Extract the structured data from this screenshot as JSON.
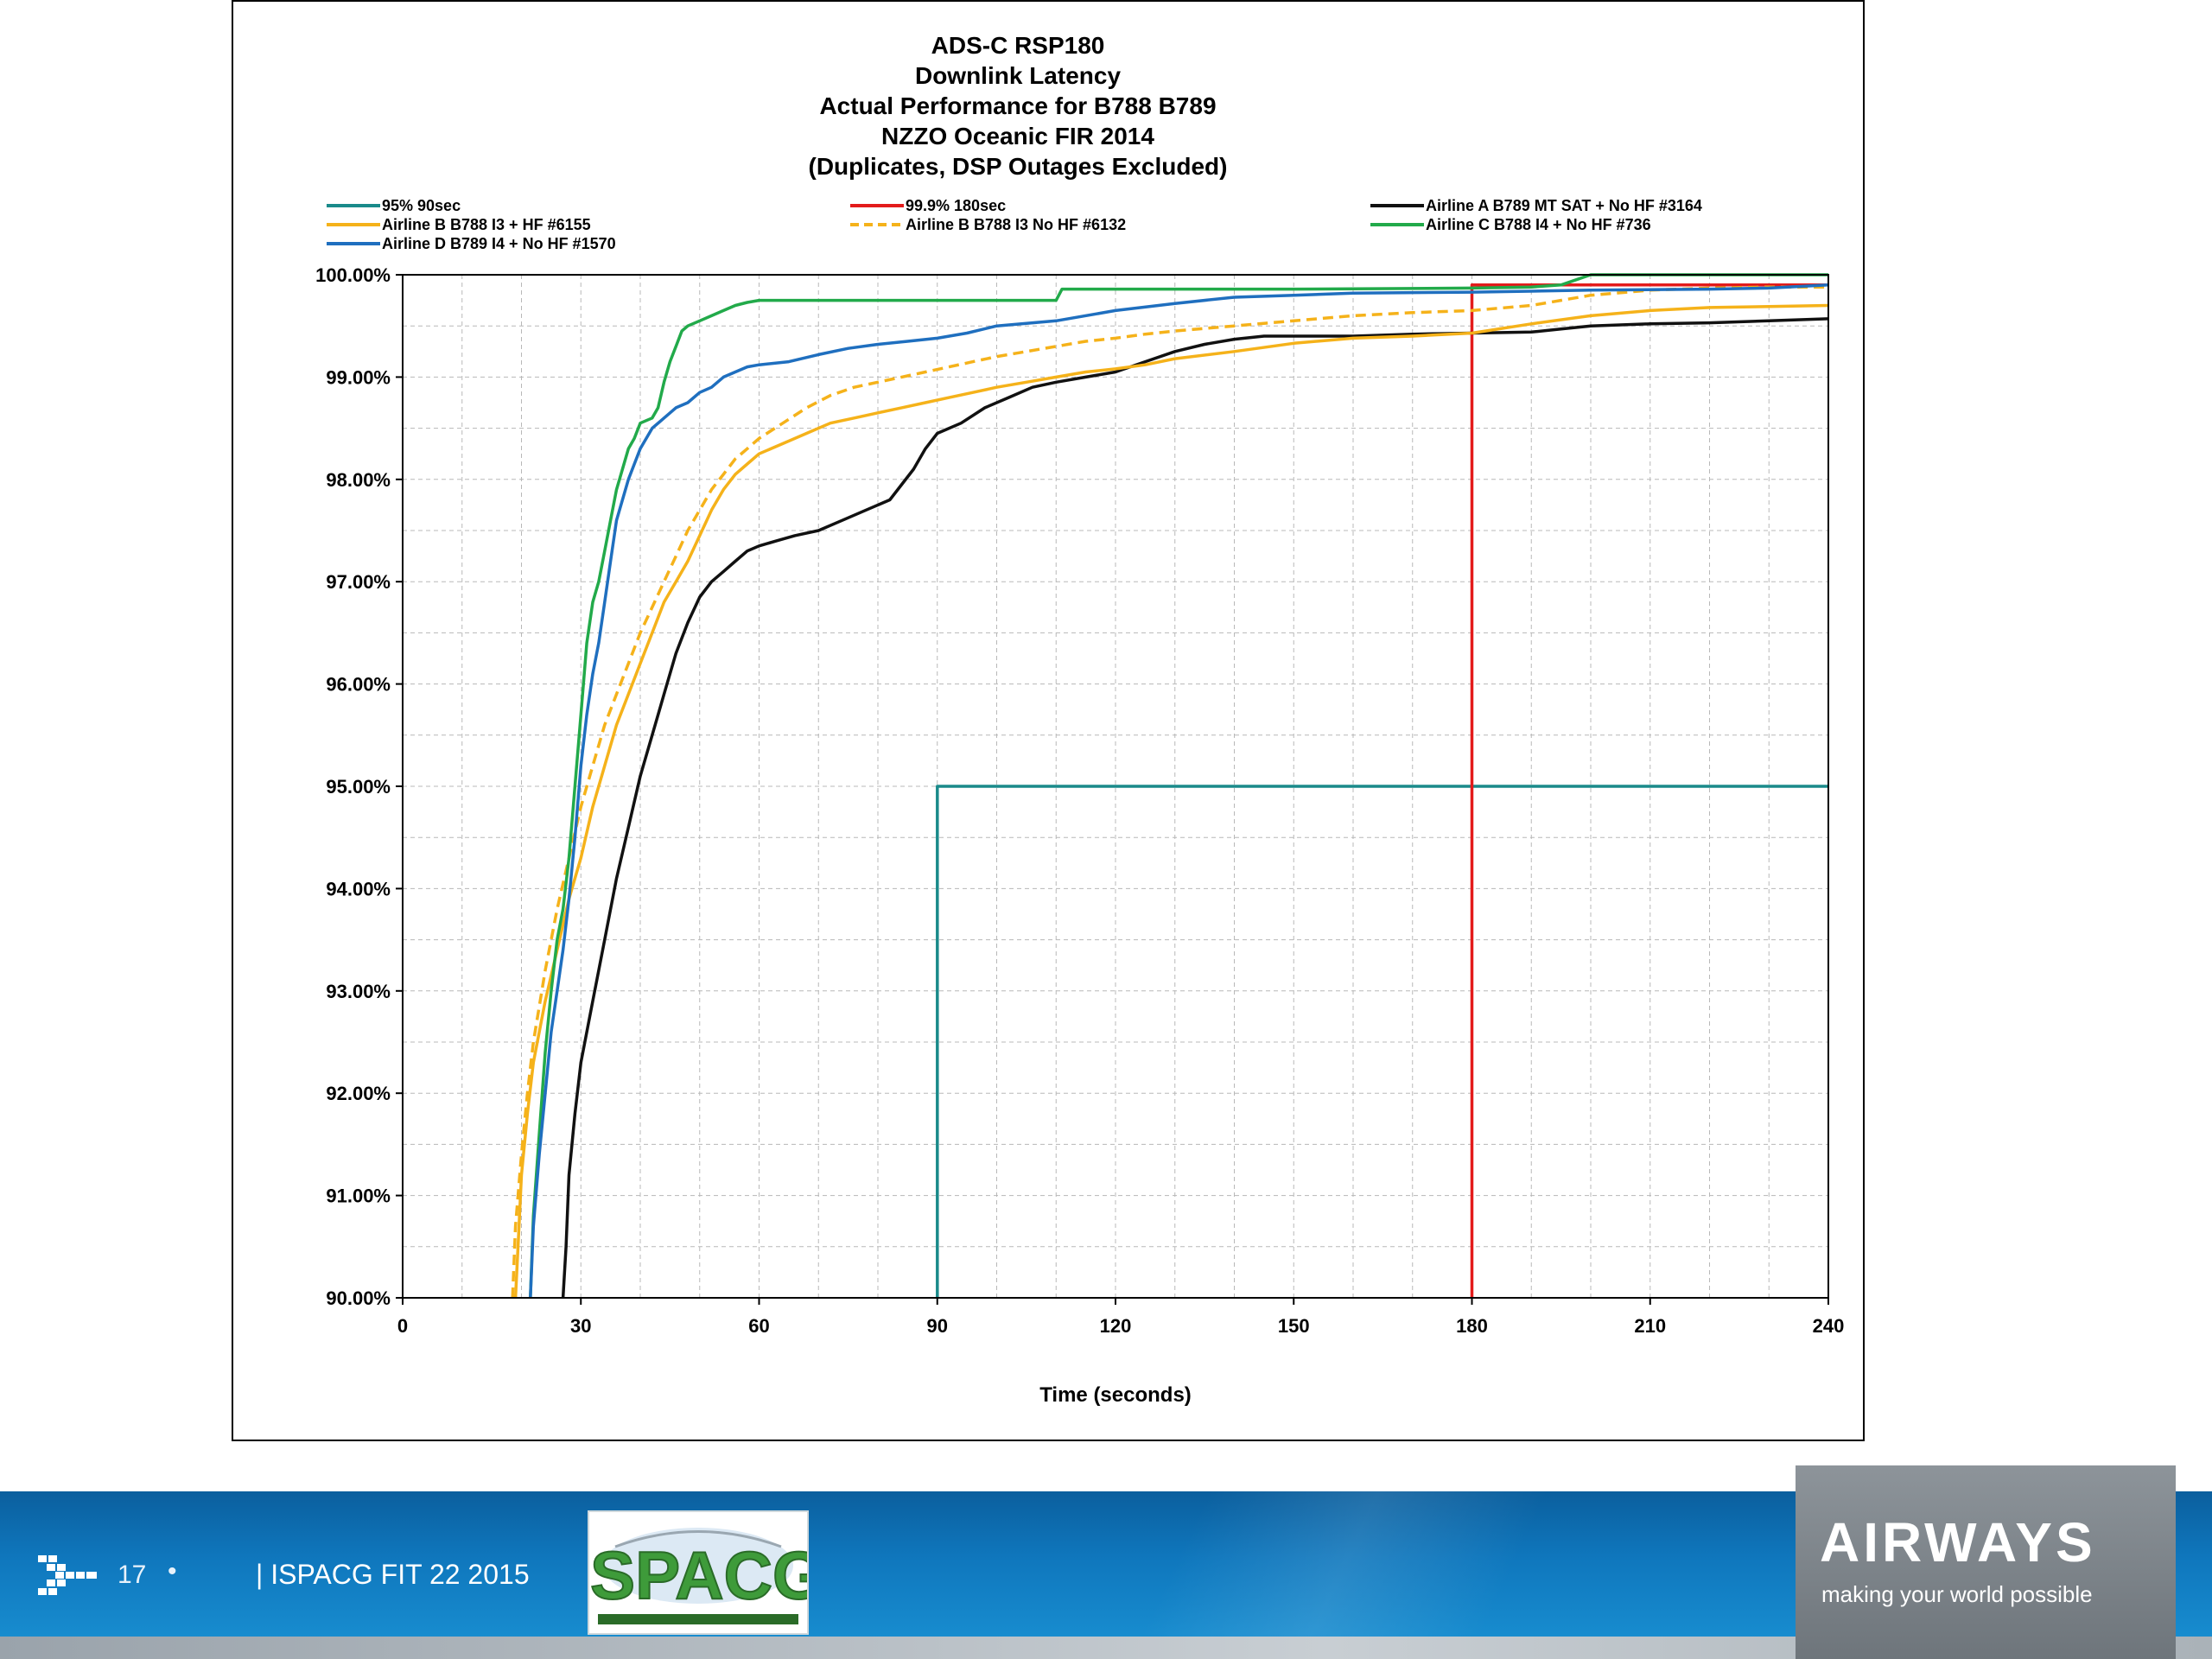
{
  "chart_data": {
    "type": "line",
    "title": [
      "ADS-C RSP180",
      "Downlink Latency",
      "Actual Performance for B788 B789",
      "NZZO Oceanic FIR 2014",
      "(Duplicates, DSP Outages Excluded)"
    ],
    "xlabel": "Time (seconds)",
    "ylabel": "",
    "xlim": [
      0,
      240
    ],
    "ylim": [
      90,
      100
    ],
    "xticks": [
      "0",
      "30",
      "60",
      "90",
      "120",
      "150",
      "180",
      "210",
      "240"
    ],
    "yticks": [
      "90.00%",
      "91.00%",
      "92.00%",
      "93.00%",
      "94.00%",
      "95.00%",
      "96.00%",
      "97.00%",
      "98.00%",
      "99.00%",
      "100.00%"
    ],
    "grid": true,
    "legend_position": "top",
    "series": [
      {
        "name": "95% 90sec",
        "color": "#1a8a8a",
        "dash": false,
        "x": [
          90,
          90,
          240
        ],
        "y": [
          90,
          95,
          95
        ]
      },
      {
        "name": "99.9% 180sec",
        "color": "#e31b1b",
        "dash": false,
        "x": [
          180,
          180,
          240
        ],
        "y": [
          90,
          99.9,
          99.9
        ]
      },
      {
        "name": "Airline A B789 MT SAT + No HF #3164",
        "color": "#111111",
        "dash": false,
        "x": [
          27,
          27.5,
          28,
          29,
          30,
          32,
          34,
          36,
          38,
          40,
          42,
          44,
          46,
          48,
          50,
          52,
          54,
          56,
          58,
          60,
          63,
          66,
          70,
          74,
          78,
          82,
          86,
          88,
          90,
          94,
          98,
          102,
          106,
          110,
          115,
          120,
          125,
          130,
          135,
          140,
          145,
          150,
          160,
          170,
          180,
          190,
          195,
          200,
          210,
          220,
          230,
          240
        ],
        "y": [
          90,
          90.5,
          91.2,
          91.8,
          92.3,
          92.9,
          93.5,
          94.1,
          94.6,
          95.1,
          95.5,
          95.9,
          96.3,
          96.6,
          96.85,
          97.0,
          97.1,
          97.2,
          97.3,
          97.35,
          97.4,
          97.45,
          97.5,
          97.6,
          97.7,
          97.8,
          98.1,
          98.3,
          98.45,
          98.55,
          98.7,
          98.8,
          98.9,
          98.95,
          99.0,
          99.05,
          99.15,
          99.25,
          99.32,
          99.37,
          99.4,
          99.4,
          99.4,
          99.42,
          99.43,
          99.44,
          99.47,
          99.5,
          99.52,
          99.53,
          99.55,
          99.57
        ]
      },
      {
        "name": "Airline B B788 I3 + HF #6155",
        "color": "#f5b21a",
        "dash": false,
        "x": [
          19,
          19.5,
          20,
          21,
          22,
          24,
          26,
          28,
          30,
          32,
          34,
          36,
          38,
          40,
          42,
          44,
          46,
          48,
          50,
          52,
          54,
          56,
          58,
          60,
          64,
          68,
          72,
          76,
          80,
          84,
          88,
          92,
          96,
          100,
          105,
          110,
          115,
          120,
          125,
          130,
          140,
          150,
          160,
          170,
          180,
          190,
          200,
          210,
          220,
          230,
          240
        ],
        "y": [
          90,
          90.6,
          91.2,
          91.8,
          92.3,
          92.9,
          93.4,
          93.9,
          94.3,
          94.8,
          95.2,
          95.6,
          95.9,
          96.2,
          96.5,
          96.8,
          97.0,
          97.2,
          97.45,
          97.7,
          97.9,
          98.05,
          98.15,
          98.25,
          98.35,
          98.45,
          98.55,
          98.6,
          98.65,
          98.7,
          98.75,
          98.8,
          98.85,
          98.9,
          98.95,
          99.0,
          99.05,
          99.08,
          99.12,
          99.18,
          99.25,
          99.33,
          99.38,
          99.4,
          99.43,
          99.52,
          99.6,
          99.65,
          99.68,
          99.69,
          99.7
        ]
      },
      {
        "name": "Airline B B788 I3 No HF #6132",
        "color": "#f5b21a",
        "dash": true,
        "x": [
          18.5,
          19,
          20,
          21,
          22,
          24,
          26,
          28,
          30,
          32,
          34,
          36,
          38,
          40,
          42,
          44,
          46,
          48,
          50,
          52,
          54,
          56,
          58,
          60,
          64,
          68,
          72,
          76,
          80,
          84,
          88,
          92,
          96,
          100,
          105,
          110,
          115,
          120,
          125,
          130,
          140,
          150,
          160,
          170,
          180,
          190,
          200,
          210,
          220,
          230,
          240
        ],
        "y": [
          90,
          90.7,
          91.4,
          92.0,
          92.5,
          93.2,
          93.8,
          94.3,
          94.8,
          95.2,
          95.6,
          95.9,
          96.2,
          96.5,
          96.75,
          97.0,
          97.25,
          97.5,
          97.7,
          97.9,
          98.05,
          98.2,
          98.3,
          98.4,
          98.55,
          98.7,
          98.82,
          98.9,
          98.95,
          99.0,
          99.05,
          99.1,
          99.15,
          99.2,
          99.25,
          99.3,
          99.35,
          99.38,
          99.42,
          99.45,
          99.5,
          99.55,
          99.6,
          99.63,
          99.65,
          99.7,
          99.8,
          99.85,
          99.87,
          99.88,
          99.88
        ]
      },
      {
        "name": "Airline C B788 I4 + No HF #736",
        "color": "#22aa4a",
        "dash": false,
        "x": [
          21.5,
          22,
          23,
          24,
          25,
          26,
          27,
          28,
          29,
          30,
          31,
          32,
          33,
          34,
          35,
          36,
          37,
          38,
          39,
          40,
          42,
          43,
          44,
          45,
          46,
          47,
          48,
          50,
          52,
          54,
          56,
          58,
          60,
          70,
          80,
          90,
          100,
          110,
          111,
          120,
          150,
          180,
          190,
          195,
          198,
          200,
          240
        ],
        "y": [
          90,
          90.8,
          91.6,
          92.4,
          93.0,
          93.5,
          93.8,
          94.3,
          95.0,
          95.7,
          96.4,
          96.8,
          97.0,
          97.3,
          97.6,
          97.9,
          98.1,
          98.3,
          98.4,
          98.55,
          98.6,
          98.7,
          98.95,
          99.15,
          99.3,
          99.45,
          99.5,
          99.55,
          99.6,
          99.65,
          99.7,
          99.73,
          99.75,
          99.75,
          99.75,
          99.75,
          99.75,
          99.75,
          99.86,
          99.86,
          99.86,
          99.87,
          99.88,
          99.9,
          99.96,
          100.0,
          100.0
        ]
      },
      {
        "name": "Airline D B789 I4 + No HF #1570",
        "color": "#1f6fbf",
        "dash": false,
        "x": [
          21.5,
          22,
          23,
          24,
          25,
          26,
          27,
          28,
          29,
          30,
          31,
          32,
          33,
          34,
          35,
          36,
          38,
          40,
          42,
          44,
          46,
          48,
          50,
          52,
          54,
          56,
          58,
          60,
          65,
          70,
          75,
          80,
          85,
          90,
          95,
          100,
          110,
          120,
          130,
          140,
          150,
          160,
          180,
          200,
          220,
          230,
          240
        ],
        "y": [
          90,
          90.7,
          91.4,
          92.0,
          92.6,
          93.0,
          93.4,
          93.9,
          94.5,
          95.2,
          95.7,
          96.1,
          96.4,
          96.8,
          97.2,
          97.6,
          98.0,
          98.3,
          98.5,
          98.6,
          98.7,
          98.75,
          98.85,
          98.9,
          99.0,
          99.05,
          99.1,
          99.12,
          99.15,
          99.22,
          99.28,
          99.32,
          99.35,
          99.38,
          99.43,
          99.5,
          99.55,
          99.65,
          99.72,
          99.78,
          99.8,
          99.82,
          99.83,
          99.85,
          99.86,
          99.87,
          99.9
        ]
      }
    ]
  },
  "footer": {
    "slide_number": "17",
    "bullet": "•",
    "label": "| ISPACG FIT 22 2015",
    "ispacg_logo_text": "ISPACG",
    "airways_logo": "AIRWAYS",
    "airways_tagline": "making your world possible",
    "colors": {
      "footer_blue": "#0f77bd",
      "airways_gray": "#7a8187"
    }
  }
}
